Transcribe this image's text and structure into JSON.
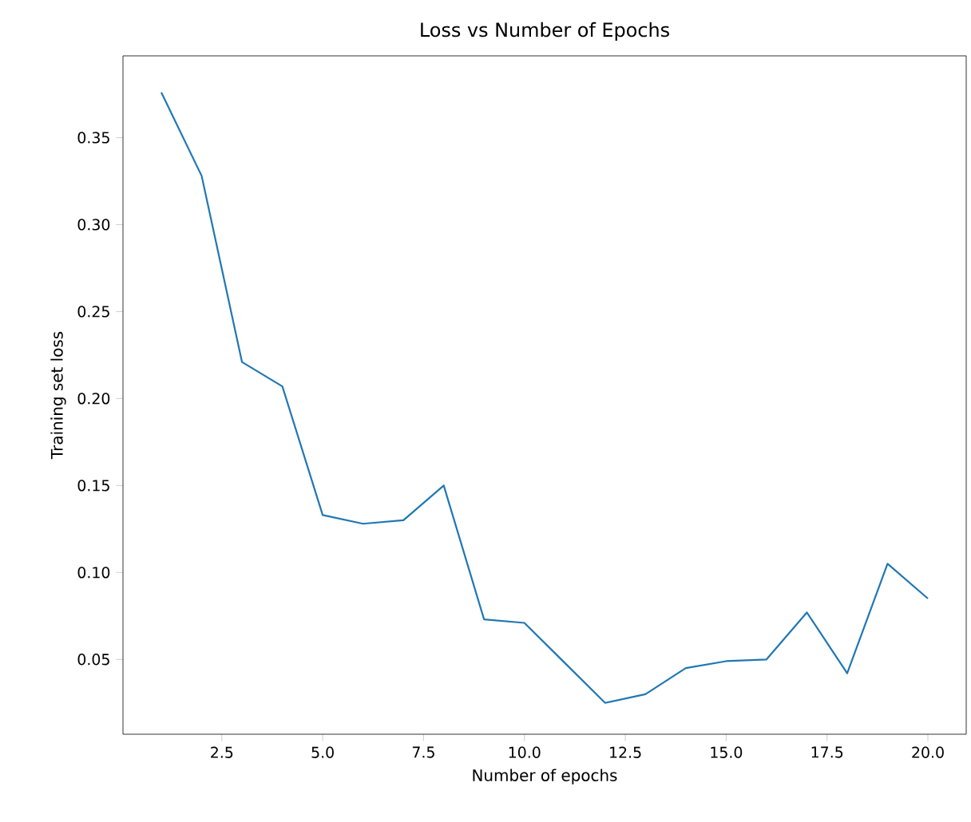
{
  "chart_data": {
    "type": "line",
    "title": "Loss vs Number of Epochs",
    "xlabel": "Number of epochs",
    "ylabel": "Training set loss",
    "x": [
      1,
      2,
      3,
      4,
      5,
      6,
      7,
      8,
      9,
      10,
      11,
      12,
      13,
      14,
      15,
      16,
      17,
      18,
      19,
      20
    ],
    "series": [
      {
        "color": "#1f77b4",
        "values": [
          0.376,
          0.328,
          0.221,
          0.207,
          0.133,
          0.128,
          0.13,
          0.15,
          0.073,
          0.071,
          0.048,
          0.025,
          0.03,
          0.045,
          0.049,
          0.05,
          0.077,
          0.042,
          0.105,
          0.085
        ]
      }
    ],
    "xlim": [
      0.05,
      20.95
    ],
    "ylim": [
      0.007,
      0.397
    ],
    "xticks": [
      {
        "value": 2.5,
        "label": "2.5"
      },
      {
        "value": 5,
        "label": "5.0"
      },
      {
        "value": 7.5,
        "label": "7.5"
      },
      {
        "value": 10,
        "label": "10.0"
      },
      {
        "value": 12.5,
        "label": "12.5"
      },
      {
        "value": 15,
        "label": "15.0"
      },
      {
        "value": 17.5,
        "label": "17.5"
      },
      {
        "value": 20,
        "label": "20.0"
      }
    ],
    "yticks": [
      {
        "value": 0.05,
        "label": "0.05"
      },
      {
        "value": 0.1,
        "label": "0.10"
      },
      {
        "value": 0.15,
        "label": "0.15"
      },
      {
        "value": 0.2,
        "label": "0.20"
      },
      {
        "value": 0.25,
        "label": "0.25"
      },
      {
        "value": 0.3,
        "label": "0.30"
      },
      {
        "value": 0.35,
        "label": "0.35"
      }
    ],
    "grid": false,
    "legend": false,
    "marker": "none",
    "line_style": "solid"
  }
}
